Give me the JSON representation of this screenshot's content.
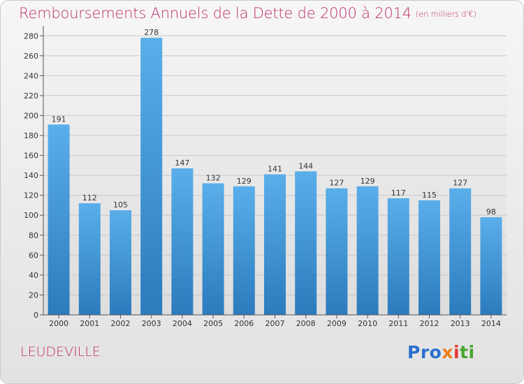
{
  "header": {
    "title": "Remboursements Annuels de la Dette de 2000 à 2014",
    "subtitle": "(en milliers d'€)"
  },
  "footer": {
    "city": "LEUDEVILLE",
    "logo_parts": [
      "Pro",
      "x",
      "i",
      "ti"
    ]
  },
  "colors": {
    "title": "#c0306c",
    "bar_top": "#5aaeea",
    "bar_bottom": "#2b7bbd"
  },
  "chart_data": {
    "type": "bar",
    "title": "Remboursements Annuels de la Dette de 2000 à 2014",
    "subtitle": "(en milliers d'€)",
    "xlabel": "",
    "ylabel": "",
    "categories": [
      "2000",
      "2001",
      "2002",
      "2003",
      "2004",
      "2005",
      "2006",
      "2007",
      "2008",
      "2009",
      "2010",
      "2011",
      "2012",
      "2013",
      "2014"
    ],
    "values": [
      191,
      112,
      105,
      278,
      147,
      132,
      129,
      141,
      144,
      127,
      129,
      117,
      115,
      127,
      98
    ],
    "ylim": [
      0,
      290
    ],
    "yticks": [
      0,
      20,
      40,
      60,
      80,
      100,
      120,
      140,
      160,
      180,
      200,
      220,
      240,
      260,
      280
    ],
    "grid": true,
    "legend": "none"
  }
}
